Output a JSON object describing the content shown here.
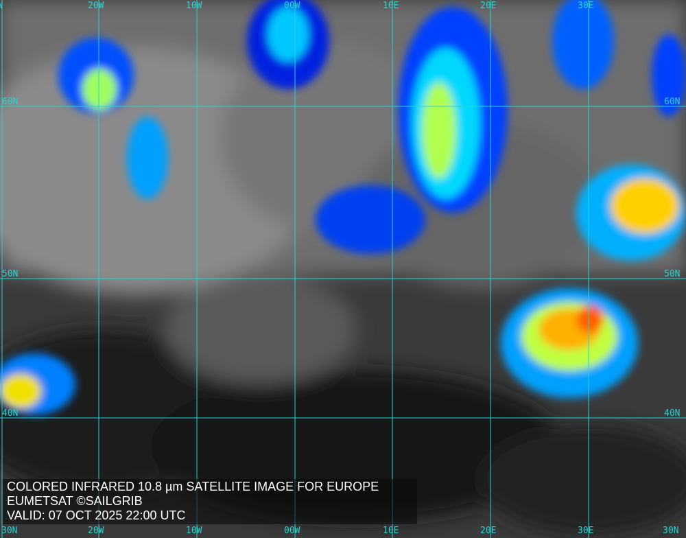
{
  "caption": {
    "line1": "COLORED INFRARED 10.8 µm SATELLITE IMAGE FOR EUROPE",
    "line2": "EUMETSAT ©SAILGRIB",
    "line3": "VALID:  07 OCT 2025 22:00 UTC"
  },
  "grid_color": "#27d4d4",
  "top_labels": [
    "W",
    "20W",
    "10W",
    "00W",
    "10E",
    "20E",
    "30E"
  ],
  "bottom_labels": [
    "30N",
    "20W",
    "10W",
    "00W",
    "10E",
    "20E",
    "30E",
    "30N"
  ],
  "left_labels": [
    "60N",
    "50N",
    "40N"
  ],
  "right_labels": [
    "60N",
    "50N",
    "40N"
  ],
  "colormap": [
    "#0010d0",
    "#0060ff",
    "#00e0ff",
    "#a0ff60",
    "#ffe000",
    "#ff8000",
    "#e04000"
  ]
}
